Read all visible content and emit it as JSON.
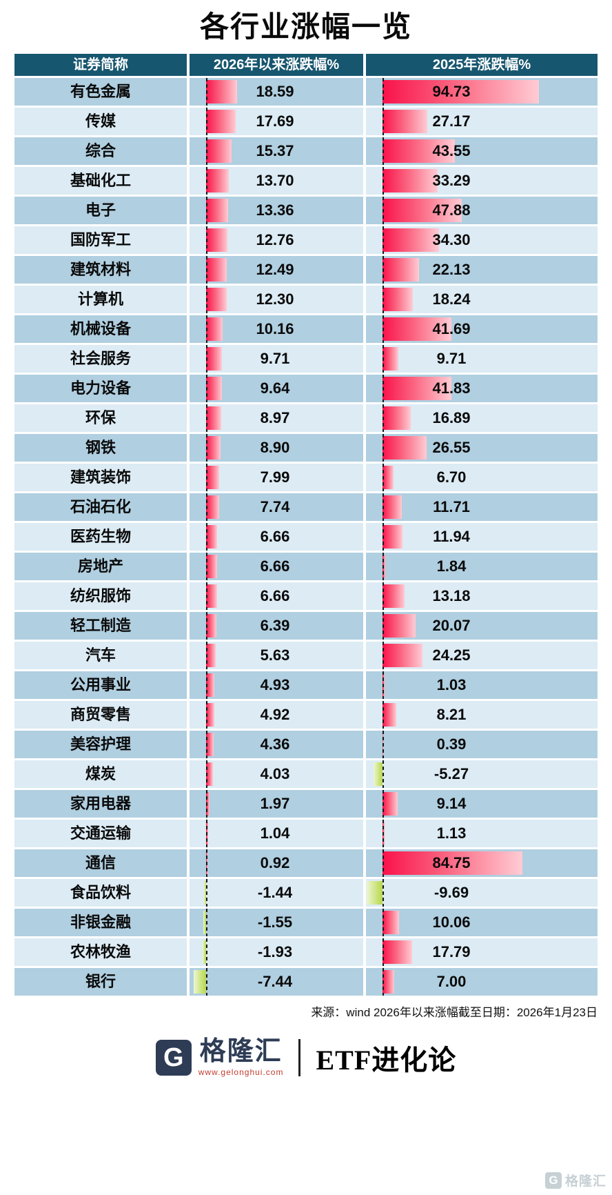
{
  "title": "各行业涨幅一览",
  "table": {
    "headers": [
      "证券简称",
      "2026年以来涨跌幅%",
      "2025年涨跌幅%"
    ],
    "rows": [
      {
        "name": "有色金属",
        "v2026": "18.59",
        "v2025": "94.73"
      },
      {
        "name": "传媒",
        "v2026": "17.69",
        "v2025": "27.17"
      },
      {
        "name": "综合",
        "v2026": "15.37",
        "v2025": "43.55"
      },
      {
        "name": "基础化工",
        "v2026": "13.70",
        "v2025": "33.29"
      },
      {
        "name": "电子",
        "v2026": "13.36",
        "v2025": "47.88"
      },
      {
        "name": "国防军工",
        "v2026": "12.76",
        "v2025": "34.30"
      },
      {
        "name": "建筑材料",
        "v2026": "12.49",
        "v2025": "22.13"
      },
      {
        "name": "计算机",
        "v2026": "12.30",
        "v2025": "18.24"
      },
      {
        "name": "机械设备",
        "v2026": "10.16",
        "v2025": "41.69"
      },
      {
        "name": "社会服务",
        "v2026": "9.71",
        "v2025": "9.71"
      },
      {
        "name": "电力设备",
        "v2026": "9.64",
        "v2025": "41.83"
      },
      {
        "name": "环保",
        "v2026": "8.97",
        "v2025": "16.89"
      },
      {
        "name": "钢铁",
        "v2026": "8.90",
        "v2025": "26.55"
      },
      {
        "name": "建筑装饰",
        "v2026": "7.99",
        "v2025": "6.70"
      },
      {
        "name": "石油石化",
        "v2026": "7.74",
        "v2025": "11.71"
      },
      {
        "name": "医药生物",
        "v2026": "6.66",
        "v2025": "11.94"
      },
      {
        "name": "房地产",
        "v2026": "6.66",
        "v2025": "1.84"
      },
      {
        "name": "纺织服饰",
        "v2026": "6.66",
        "v2025": "13.18"
      },
      {
        "name": "轻工制造",
        "v2026": "6.39",
        "v2025": "20.07"
      },
      {
        "name": "汽车",
        "v2026": "5.63",
        "v2025": "24.25"
      },
      {
        "name": "公用事业",
        "v2026": "4.93",
        "v2025": "1.03"
      },
      {
        "name": "商贸零售",
        "v2026": "4.92",
        "v2025": "8.21"
      },
      {
        "name": "美容护理",
        "v2026": "4.36",
        "v2025": "0.39"
      },
      {
        "name": "煤炭",
        "v2026": "4.03",
        "v2025": "-5.27"
      },
      {
        "name": "家用电器",
        "v2026": "1.97",
        "v2025": "9.14"
      },
      {
        "name": "交通运输",
        "v2026": "1.04",
        "v2025": "1.13"
      },
      {
        "name": "通信",
        "v2026": "0.92",
        "v2025": "84.75"
      },
      {
        "name": "食品饮料",
        "v2026": "-1.44",
        "v2025": "-9.69"
      },
      {
        "name": "非银金融",
        "v2026": "-1.55",
        "v2025": "10.06"
      },
      {
        "name": "农林牧渔",
        "v2026": "-1.93",
        "v2025": "17.79"
      },
      {
        "name": "银行",
        "v2026": "-7.44",
        "v2025": "7.00"
      }
    ]
  },
  "footer": {
    "source": "来源：wind 2026年以来涨幅截至日期：2026年1月23日"
  },
  "branding": {
    "logo_letter": "G",
    "logo_text": "格隆汇",
    "logo_url": "www.gelonghui.com",
    "partner": "ETF进化论",
    "watermark_text": "格隆汇"
  },
  "colors": {
    "header_bg": "#17566f",
    "row_dark": "#b0cfe0",
    "row_light": "#dcebf4",
    "bar_red_start": "#f9124a",
    "bar_red_end": "#ffccd4",
    "bar_green_start": "#b7d84b",
    "bar_green_end": "#edf6d2",
    "ink": "#0a0a0a",
    "logo_color": "#2e3c55"
  },
  "chart_data": {
    "type": "bar",
    "orientation": "horizontal",
    "title": "各行业涨幅一览",
    "categories": [
      "有色金属",
      "传媒",
      "综合",
      "基础化工",
      "电子",
      "国防军工",
      "建筑材料",
      "计算机",
      "机械设备",
      "社会服务",
      "电力设备",
      "环保",
      "钢铁",
      "建筑装饰",
      "石油石化",
      "医药生物",
      "房地产",
      "纺织服饰",
      "轻工制造",
      "汽车",
      "公用事业",
      "商贸零售",
      "美容护理",
      "煤炭",
      "家用电器",
      "交通运输",
      "通信",
      "食品饮料",
      "非银金融",
      "农林牧渔",
      "银行"
    ],
    "series": [
      {
        "name": "2026年以来涨跌幅%",
        "values": [
          18.59,
          17.69,
          15.37,
          13.7,
          13.36,
          12.76,
          12.49,
          12.3,
          10.16,
          9.71,
          9.64,
          8.97,
          8.9,
          7.99,
          7.74,
          6.66,
          6.66,
          6.66,
          6.39,
          5.63,
          4.93,
          4.92,
          4.36,
          4.03,
          1.97,
          1.04,
          0.92,
          -1.44,
          -1.55,
          -1.93,
          -7.44
        ]
      },
      {
        "name": "2025年涨跌幅%",
        "values": [
          94.73,
          27.17,
          43.55,
          33.29,
          47.88,
          34.3,
          22.13,
          18.24,
          41.69,
          9.71,
          41.83,
          16.89,
          26.55,
          6.7,
          11.71,
          11.94,
          1.84,
          13.18,
          20.07,
          24.25,
          1.03,
          8.21,
          0.39,
          -5.27,
          9.14,
          1.13,
          84.75,
          -9.69,
          10.06,
          17.79,
          7.0
        ]
      }
    ],
    "value_axis_note": "bars start at zero baseline; positive bars red gradient, negative bars green gradient",
    "xlim": [
      -10,
      100
    ],
    "grid": false,
    "legend_position": "column headers"
  }
}
